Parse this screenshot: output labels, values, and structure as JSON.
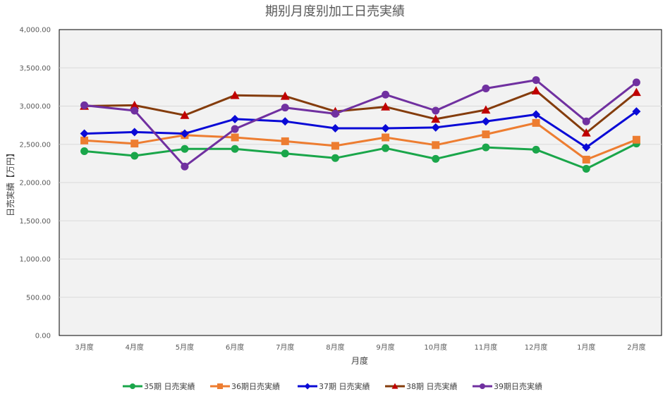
{
  "chart_data": {
    "type": "line",
    "title": "期别月度别加工日売実績",
    "xlabel": "月度",
    "ylabel": "日売実績【万円】",
    "categories": [
      "3月度",
      "4月度",
      "5月度",
      "6月度",
      "7月度",
      "8月度",
      "9月度",
      "10月度",
      "11月度",
      "12月度",
      "1月度",
      "2月度"
    ],
    "ylim": [
      0,
      4000
    ],
    "yticks": [
      "0.00",
      "500.00",
      "1,000.00",
      "1,500.00",
      "2,000.00",
      "2,500.00",
      "3,000.00",
      "3,500.00",
      "4,000.00"
    ],
    "grid": true,
    "legend_position": "bottom",
    "series": [
      {
        "name": "35期 日売実績",
        "color": "#1aa64a",
        "marker": "circle",
        "values": [
          2410,
          2350,
          2440,
          2440,
          2380,
          2320,
          2450,
          2310,
          2460,
          2430,
          2180,
          2510
        ]
      },
      {
        "name": "36期日売実績",
        "color": "#ed7d31",
        "marker": "square",
        "values": [
          2550,
          2510,
          2620,
          2590,
          2540,
          2480,
          2590,
          2490,
          2630,
          2780,
          2300,
          2560
        ]
      },
      {
        "name": "37期 日売実績",
        "color": "#0a0ad6",
        "marker": "diamond",
        "values": [
          2640,
          2660,
          2640,
          2830,
          2800,
          2710,
          2710,
          2720,
          2800,
          2890,
          2460,
          2930
        ]
      },
      {
        "name": "38期 日売実績",
        "color": "#843c0c",
        "marker": "triangle",
        "markerColor": "#c00000",
        "values": [
          3000,
          3010,
          2880,
          3140,
          3130,
          2930,
          2990,
          2830,
          2950,
          3200,
          2650,
          3180
        ]
      },
      {
        "name": "39期日売実績",
        "color": "#7030a0",
        "marker": "circle",
        "values": [
          3010,
          2940,
          2210,
          2700,
          2980,
          2900,
          3150,
          2940,
          3230,
          3340,
          2800,
          3310
        ]
      }
    ]
  }
}
